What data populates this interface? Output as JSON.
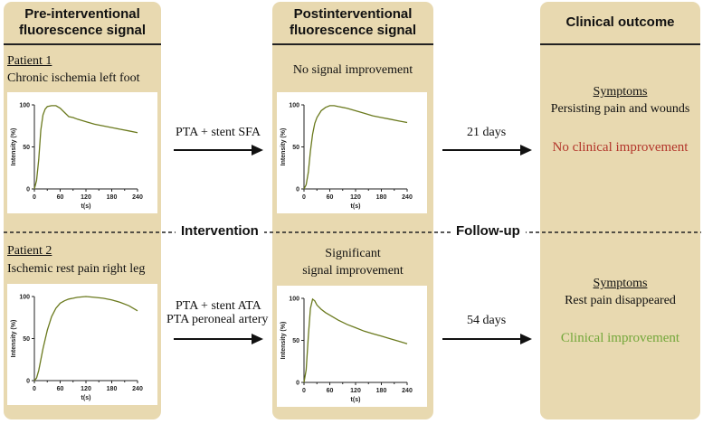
{
  "columns": {
    "pre": "Pre-interventional\nfluorescence signal",
    "post": "Postinterventional\nfluorescence signal",
    "outcome": "Clinical outcome"
  },
  "patient1": {
    "label": "Patient 1",
    "condition": "Chronic ischemia left foot",
    "post_note": "No signal improvement",
    "intervention": "PTA + stent SFA",
    "followup_days": "21 days",
    "symptoms_label": "Symptoms",
    "symptoms": "Persisting pain and wounds",
    "outcome": "No clinical improvement"
  },
  "patient2": {
    "label": "Patient 2",
    "condition": "Ischemic rest pain right leg",
    "post_note_line1": "Significant",
    "post_note_line2": "signal improvement",
    "intervention_line1": "PTA + stent ATA",
    "intervention_line2": "PTA peroneal artery",
    "followup_days": "54 days",
    "symptoms_label": "Symptoms",
    "symptoms": "Rest pain disappeared",
    "outcome": "Clinical improvement"
  },
  "divider_labels": {
    "intervention": "Intervention",
    "followup": "Follow-up"
  },
  "colors": {
    "panel": "#e8d9b0",
    "curve": "#6b7a1e",
    "bad": "#b3362b",
    "good": "#73a73a"
  },
  "chart_data": [
    {
      "id": "p1-pre",
      "type": "line",
      "xlabel": "t(s)",
      "ylabel": "Intensity (%)",
      "xlim": [
        0,
        240
      ],
      "ylim": [
        0,
        100
      ],
      "xticks": [
        0,
        60,
        120,
        180,
        240
      ],
      "yticks": [
        0,
        50,
        100
      ],
      "x": [
        0,
        5,
        10,
        15,
        20,
        25,
        30,
        40,
        50,
        60,
        70,
        80,
        90,
        100,
        120,
        140,
        160,
        180,
        200,
        220,
        240
      ],
      "y": [
        0,
        10,
        35,
        70,
        88,
        95,
        98,
        99,
        99,
        96,
        91,
        86,
        85,
        83,
        80,
        77,
        75,
        73,
        71,
        69,
        67
      ]
    },
    {
      "id": "p1-post",
      "type": "line",
      "xlabel": "t(s)",
      "ylabel": "Intensity (%)",
      "xlim": [
        0,
        240
      ],
      "ylim": [
        0,
        100
      ],
      "xticks": [
        0,
        60,
        120,
        180,
        240
      ],
      "yticks": [
        0,
        50,
        100
      ],
      "x": [
        0,
        5,
        10,
        15,
        20,
        25,
        30,
        40,
        50,
        60,
        70,
        80,
        100,
        120,
        140,
        160,
        180,
        200,
        220,
        240
      ],
      "y": [
        0,
        5,
        20,
        45,
        65,
        78,
        85,
        93,
        97,
        99,
        99,
        98,
        96,
        93,
        90,
        87,
        85,
        83,
        81,
        79
      ]
    },
    {
      "id": "p2-pre",
      "type": "line",
      "xlabel": "t(s)",
      "ylabel": "Intensity (%)",
      "xlim": [
        0,
        240
      ],
      "ylim": [
        0,
        100
      ],
      "xticks": [
        0,
        60,
        120,
        180,
        240
      ],
      "yticks": [
        0,
        50,
        100
      ],
      "x": [
        0,
        5,
        10,
        20,
        30,
        40,
        50,
        60,
        70,
        80,
        90,
        100,
        120,
        140,
        160,
        180,
        200,
        220,
        240
      ],
      "y": [
        0,
        3,
        12,
        38,
        60,
        76,
        86,
        92,
        95,
        97,
        98,
        99,
        100,
        99,
        98,
        96,
        93,
        89,
        83
      ]
    },
    {
      "id": "p2-post",
      "type": "line",
      "xlabel": "t(s)",
      "ylabel": "Intensity (%)",
      "xlim": [
        0,
        240
      ],
      "ylim": [
        0,
        100
      ],
      "xticks": [
        0,
        60,
        120,
        180,
        240
      ],
      "yticks": [
        0,
        50,
        100
      ],
      "x": [
        0,
        5,
        10,
        15,
        20,
        25,
        30,
        40,
        50,
        60,
        80,
        100,
        120,
        140,
        160,
        180,
        200,
        220,
        240
      ],
      "y": [
        0,
        15,
        55,
        88,
        99,
        97,
        92,
        87,
        83,
        80,
        74,
        69,
        65,
        61,
        58,
        55,
        52,
        49,
        46
      ]
    }
  ]
}
